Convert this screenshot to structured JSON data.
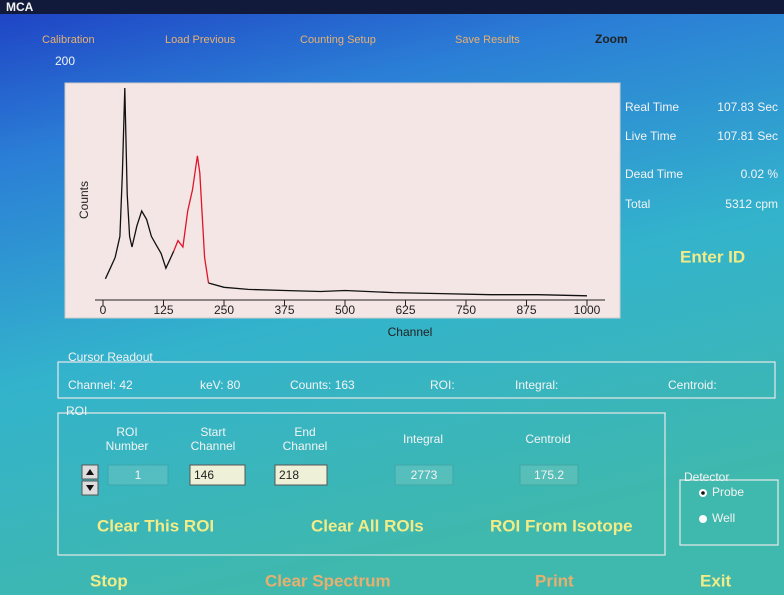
{
  "window": {
    "title": "MCA"
  },
  "menu": [
    "Calibration",
    "Load Previous",
    "Counting Setup",
    "Save Results",
    "Zoom"
  ],
  "calibration_value": "200",
  "chart_data": {
    "type": "line",
    "ylabel": "Counts",
    "xlabel": "Channel",
    "xlim": [
      -25,
      1040
    ],
    "ylim": [
      0,
      1000
    ],
    "xticks": [
      0,
      125,
      250,
      375,
      500,
      625,
      750,
      875,
      1000
    ],
    "series": [
      {
        "color": "#111111",
        "x": [
          5,
          15,
          25,
          35,
          40,
          45,
          50,
          55,
          60,
          70,
          80,
          90,
          100,
          110,
          120,
          130,
          140,
          146
        ],
        "values": [
          100,
          150,
          200,
          300,
          600,
          1000,
          500,
          300,
          250,
          350,
          420,
          380,
          300,
          260,
          220,
          150,
          200,
          230
        ]
      },
      {
        "color": "#e0142a",
        "x": [
          146,
          155,
          165,
          175,
          185,
          195,
          200,
          205,
          210,
          218
        ],
        "values": [
          230,
          280,
          250,
          420,
          520,
          680,
          600,
          400,
          200,
          80
        ]
      },
      {
        "color": "#111111",
        "x": [
          218,
          250,
          300,
          375,
          450,
          500,
          600,
          700,
          800,
          900,
          1000
        ],
        "values": [
          80,
          60,
          50,
          45,
          40,
          45,
          35,
          30,
          25,
          25,
          20
        ]
      }
    ]
  },
  "status": [
    {
      "label": "Real Time",
      "value": "107.83 Sec"
    },
    {
      "label": "Live Time",
      "value": "107.81 Sec"
    },
    {
      "label": "Dead Time",
      "value": "0.02  %"
    },
    {
      "label": "Total",
      "value": "5312 cpm"
    }
  ],
  "enter_id": "Enter ID",
  "cursor_readout": {
    "title": "Cursor Readout",
    "fields": [
      "Channel: 42",
      "keV: 80",
      "Counts: 163",
      "ROI:",
      "Integral:",
      "Centroid:"
    ]
  },
  "roi": {
    "title": "ROI",
    "headers": [
      "ROI\nNumber",
      "Start\nChannel",
      "End\nChannel",
      "Integral",
      "Centroid"
    ],
    "values": [
      "1",
      "146",
      "218",
      "2773",
      "175.2"
    ],
    "buttons": [
      "Clear This ROI",
      "Clear All ROIs",
      "ROI From Isotope"
    ]
  },
  "detector": {
    "title": "Detector",
    "options": [
      "Probe",
      "Well"
    ]
  },
  "bottom_buttons": [
    "Stop",
    "Clear Spectrum",
    "Print",
    "Exit"
  ]
}
